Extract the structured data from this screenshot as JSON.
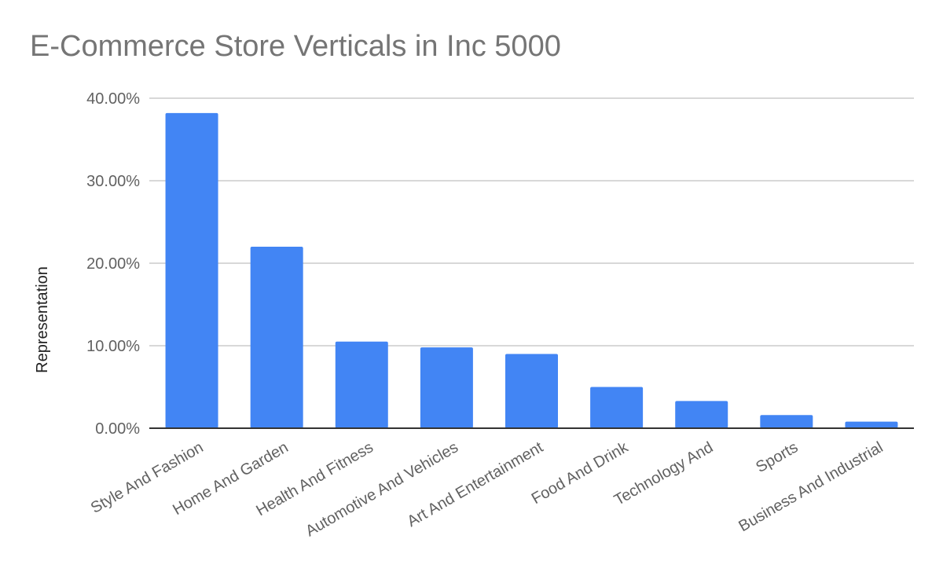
{
  "chart_data": {
    "type": "bar",
    "title": "E-Commerce Store Verticals in Inc 5000",
    "xlabel": "",
    "ylabel": "Representation",
    "categories": [
      "Style And Fashion",
      "Home And Garden",
      "Health And Fitness",
      "Automotive And Vehicles",
      "Art And Entertainment",
      "Food And Drink",
      "Technology And",
      "Sports",
      "Business And Industrial"
    ],
    "values": [
      38.2,
      22.0,
      10.5,
      9.8,
      9.0,
      5.0,
      3.3,
      1.6,
      0.8
    ],
    "ylim": [
      0,
      40
    ],
    "yticks": [
      "0.00%",
      "10.00%",
      "20.00%",
      "30.00%",
      "40.00%"
    ],
    "grid": true,
    "bar_color": "#4285f4",
    "legend": "none"
  }
}
